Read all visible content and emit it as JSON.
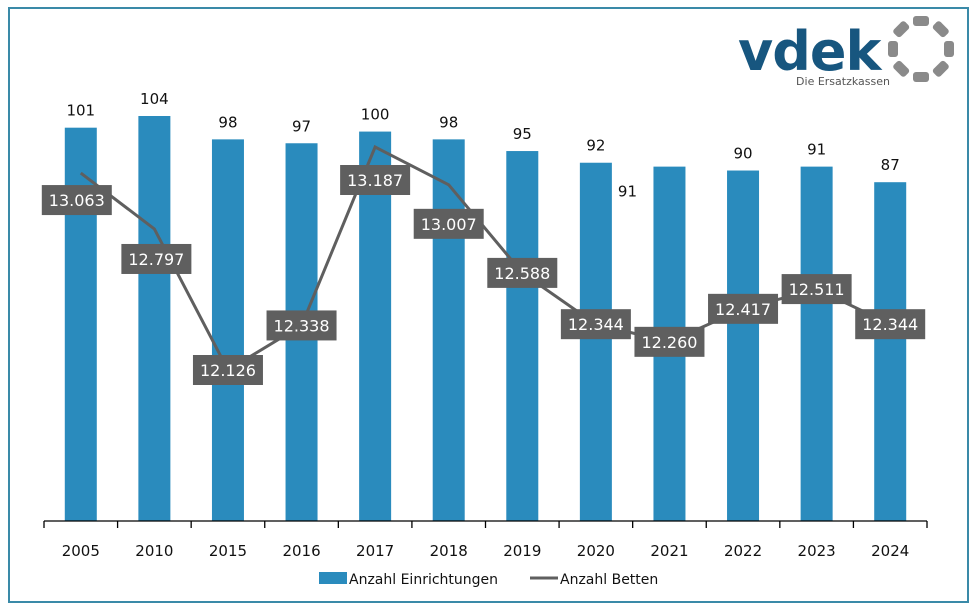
{
  "logo": {
    "brand": "vdek",
    "tagline": "Die Ersatzkassen",
    "brand_color": "#17567f",
    "ring_color": "#8a8a8a",
    "tagline_color": "#555555"
  },
  "chart_data": {
    "type": "bar",
    "title": "",
    "xlabel": "",
    "ylabel": "",
    "categories": [
      "2005",
      "2010",
      "2015",
      "2016",
      "2017",
      "2018",
      "2019",
      "2020",
      "2021",
      "2022",
      "2023",
      "2024"
    ],
    "series": [
      {
        "name": "Anzahl Einrichtungen",
        "type": "bar",
        "color": "#2a8bbd",
        "values": [
          101,
          104,
          98,
          97,
          100,
          98,
          95,
          92,
          91,
          90,
          91,
          87
        ],
        "labels": [
          "101",
          "104",
          "98",
          "97",
          "100",
          "98",
          "95",
          "92",
          "91",
          "90",
          "91",
          "87"
        ],
        "ylim": [
          0,
          110
        ]
      },
      {
        "name": "Anzahl Betten",
        "type": "line",
        "color": "#5f5f5f",
        "values": [
          13063,
          12797,
          12126,
          12338,
          13187,
          13007,
          12588,
          12344,
          12260,
          12417,
          12511,
          12344
        ],
        "labels": [
          "13.063",
          "12.797",
          "12.126",
          "12.338",
          "13.187",
          "13.007",
          "12.588",
          "12.344",
          "12.260",
          "12.417",
          "12.511",
          "12.344"
        ],
        "ylim": [
          11300,
          13250
        ]
      }
    ],
    "legend": {
      "position": "bottom",
      "items": [
        {
          "label": "Anzahl Einrichtungen",
          "marker": "bar",
          "color": "#2a8bbd"
        },
        {
          "label": "Anzahl Betten",
          "marker": "line",
          "color": "#5f5f5f"
        }
      ]
    },
    "grid": false,
    "axis_color": "#000000",
    "frame_color": "#3a8aa8"
  }
}
